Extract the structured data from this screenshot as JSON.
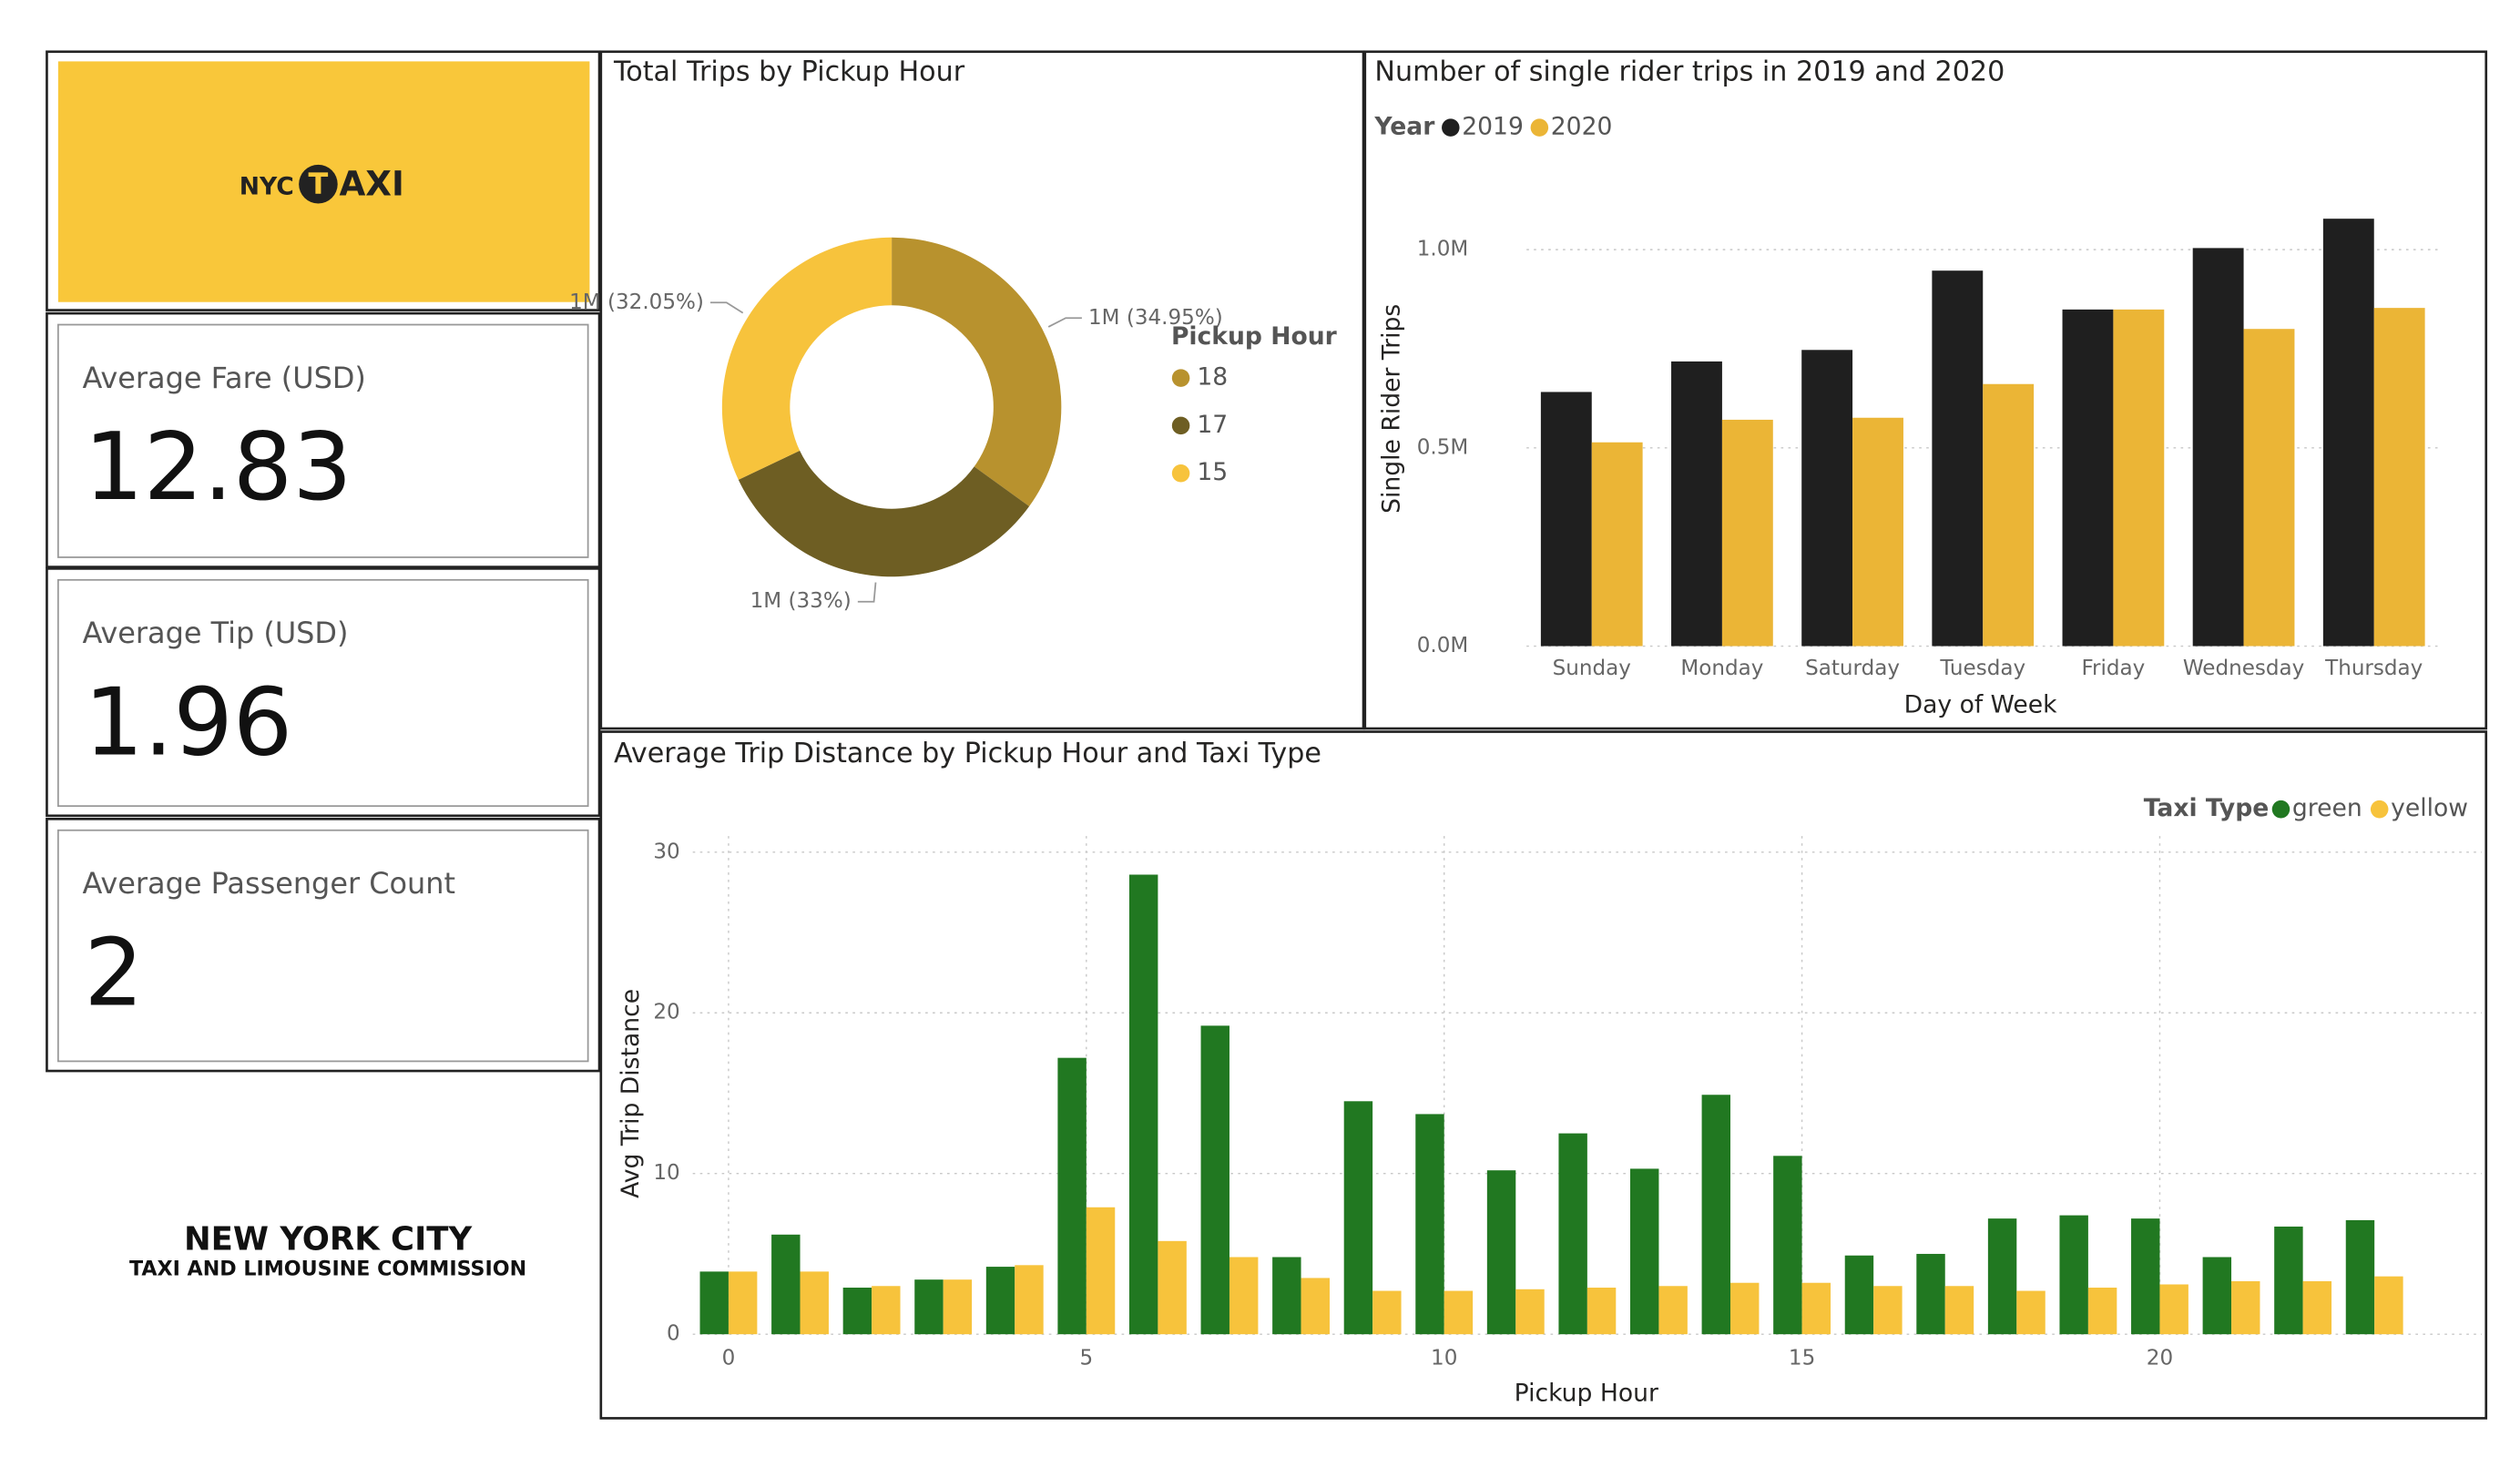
{
  "logo": {
    "nyc": "NYC",
    "t": "T",
    "axi": "AXI"
  },
  "cards": [
    {
      "label": "Average Fare (USD)",
      "value": 12.83
    },
    {
      "label": "Average Tip (USD)",
      "value": 1.96
    },
    {
      "label": "Average Passenger Count",
      "value": 2
    }
  ],
  "footer_logo": {
    "line1": "NEW YORK CITY",
    "line2": "TAXI AND LIMOUSINE COMMISSION"
  },
  "chart_data": [
    {
      "type": "donut",
      "title": "Total Trips by Pickup Hour",
      "legend_title": "Pickup Hour",
      "categories": [
        "18",
        "17",
        "15"
      ],
      "values": [
        34.95,
        33,
        32.05
      ],
      "value_labels": [
        "1M (34.95%)",
        "1M (33%)",
        "1M (32.05%)"
      ],
      "colors": [
        "#b8922e",
        "#6e5e23",
        "#f7c33c"
      ]
    },
    {
      "type": "bar",
      "title": "Number of single rider trips in 2019 and 2020",
      "legend_title": "Year",
      "x_label": "Day of Week",
      "y_label": "Single Rider Trips",
      "categories": [
        "Sunday",
        "Monday",
        "Saturday",
        "Tuesday",
        "Friday",
        "Wednesday",
        "Thursday"
      ],
      "series": [
        {
          "name": "2019",
          "color": "#1f1f1f",
          "values": [
            641000,
            718000,
            747000,
            947000,
            849000,
            1004000,
            1078000
          ]
        },
        {
          "name": "2020",
          "color": "#ebb536",
          "values": [
            514000,
            571000,
            576000,
            661000,
            849000,
            800000,
            853000
          ]
        }
      ],
      "ylim": [
        0,
        1100000
      ],
      "yticks": [
        {
          "value": 0,
          "label": "0.0M"
        },
        {
          "value": 500000,
          "label": "0.5M"
        },
        {
          "value": 1000000,
          "label": "1.0M"
        }
      ],
      "grid": true
    },
    {
      "type": "bar",
      "title": "Average Trip Distance by Pickup Hour and Taxi Type",
      "legend_title": "Taxi Type",
      "x_label": "Pickup Hour",
      "y_label": "Avg Trip Distance",
      "x": [
        0,
        1,
        2,
        3,
        4,
        5,
        6,
        7,
        8,
        9,
        10,
        11,
        12,
        13,
        14,
        15,
        16,
        17,
        18,
        19,
        20,
        21,
        22,
        23
      ],
      "series": [
        {
          "name": "green",
          "color": "#217821",
          "values": [
            3.9,
            6.2,
            2.9,
            3.4,
            4.2,
            17.2,
            28.6,
            19.2,
            4.8,
            14.5,
            13.7,
            10.2,
            12.5,
            10.3,
            14.9,
            11.1,
            4.9,
            5.0,
            7.2,
            7.4,
            7.2,
            4.8,
            6.7,
            7.1
          ]
        },
        {
          "name": "yellow",
          "color": "#f7c33c",
          "values": [
            3.9,
            3.9,
            3.0,
            3.4,
            4.3,
            7.9,
            5.8,
            4.8,
            3.5,
            2.7,
            2.7,
            2.8,
            2.9,
            3.0,
            3.2,
            3.2,
            3.0,
            3.0,
            2.7,
            2.9,
            3.1,
            3.3,
            3.3,
            3.6
          ]
        }
      ],
      "xlim": [
        -0.5,
        24.5
      ],
      "xticks": [
        0,
        5,
        10,
        15,
        20
      ],
      "ylim": [
        0,
        31
      ],
      "yticks": [
        0,
        10,
        20,
        30
      ],
      "grid": true
    }
  ]
}
